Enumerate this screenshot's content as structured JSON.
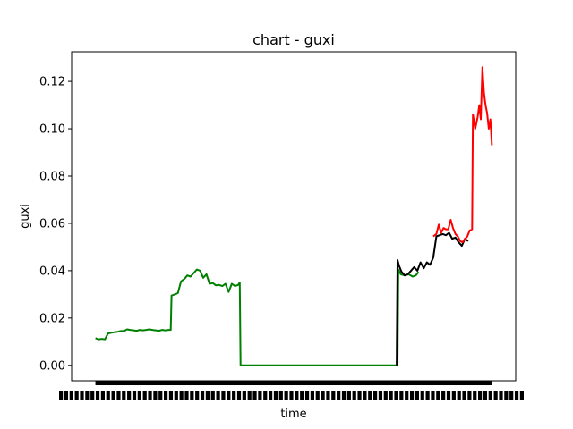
{
  "chart_data": {
    "type": "line",
    "title": "chart - guxi",
    "xlabel": "time",
    "ylabel": "guxi",
    "ylim": [
      -0.0065,
      0.1325
    ],
    "yticks": [
      0.0,
      0.02,
      0.04,
      0.06,
      0.08,
      0.1,
      0.12
    ],
    "ytick_labels": [
      "0.00",
      "0.02",
      "0.04",
      "0.06",
      "0.08",
      "0.10",
      "0.12"
    ],
    "xlim": [
      -60,
      1060
    ],
    "x_ticks_note": "dense overlapping date tick labels, unreadable",
    "grid": false,
    "series": [
      {
        "color": "#008000",
        "x": [
          0,
          8,
          16,
          24,
          32,
          40,
          48,
          56,
          64,
          72,
          80,
          88,
          96,
          104,
          112,
          120,
          128,
          136,
          144,
          152,
          160,
          168,
          176,
          184,
          190,
          192,
          200,
          208,
          216,
          224,
          232,
          240,
          248,
          256,
          264,
          272,
          280,
          288,
          296,
          304,
          312,
          320,
          328,
          336,
          344,
          352,
          360,
          364,
          366,
          500,
          700,
          762,
          764,
          770,
          780,
          790,
          800,
          808,
          815
        ],
        "y": [
          0.0115,
          0.011,
          0.0112,
          0.011,
          0.0135,
          0.0138,
          0.014,
          0.0142,
          0.0145,
          0.0145,
          0.0152,
          0.015,
          0.0148,
          0.0146,
          0.015,
          0.0148,
          0.015,
          0.0152,
          0.015,
          0.0148,
          0.0146,
          0.015,
          0.0148,
          0.015,
          0.015,
          0.0295,
          0.03,
          0.0305,
          0.0355,
          0.0365,
          0.038,
          0.0375,
          0.039,
          0.0405,
          0.04,
          0.037,
          0.0385,
          0.0345,
          0.0348,
          0.0338,
          0.034,
          0.0335,
          0.0345,
          0.031,
          0.0345,
          0.0335,
          0.034,
          0.035,
          0.0,
          0.0,
          0.0,
          0.0,
          0.0405,
          0.0385,
          0.038,
          0.0385,
          0.0375,
          0.038,
          0.0395
        ]
      },
      {
        "color": "#000000",
        "x": [
          760,
          762,
          766,
          772,
          780,
          788,
          796,
          804,
          812,
          820,
          828,
          836,
          844,
          852,
          860,
          868,
          876,
          884,
          892,
          900,
          908,
          916,
          924,
          932,
          940
        ],
        "y": [
          0.0,
          0.0445,
          0.042,
          0.0395,
          0.038,
          0.0385,
          0.04,
          0.0415,
          0.04,
          0.0435,
          0.041,
          0.0435,
          0.0425,
          0.0455,
          0.0545,
          0.055,
          0.0555,
          0.055,
          0.056,
          0.0535,
          0.054,
          0.052,
          0.0505,
          0.0535,
          0.0525
        ]
      },
      {
        "color": "#ff0000",
        "x": [
          852,
          860,
          866,
          872,
          878,
          884,
          890,
          896,
          902,
          908,
          914,
          920,
          926,
          932,
          938,
          944,
          950,
          952,
          958,
          964,
          968,
          972,
          976,
          980,
          984,
          988,
          992,
          996,
          1000
        ],
        "y": [
          0.0545,
          0.0555,
          0.0595,
          0.056,
          0.058,
          0.0575,
          0.0575,
          0.0615,
          0.058,
          0.0555,
          0.0545,
          0.0525,
          0.052,
          0.0535,
          0.0545,
          0.057,
          0.0575,
          0.106,
          0.1,
          0.105,
          0.11,
          0.104,
          0.126,
          0.115,
          0.11,
          0.1065,
          0.1,
          0.104,
          0.093
        ]
      }
    ]
  }
}
